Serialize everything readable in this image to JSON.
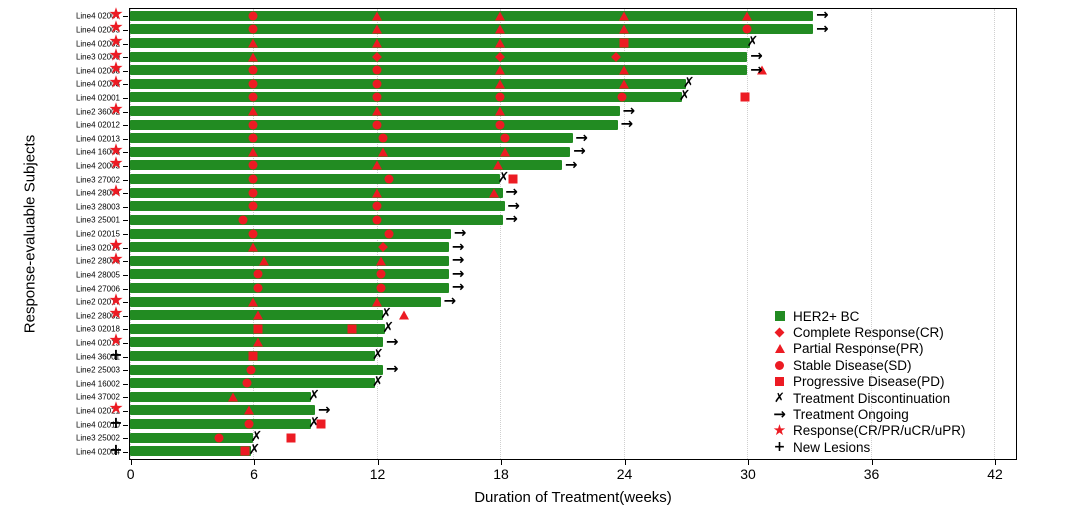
{
  "chart_data": {
    "type": "bar",
    "subtype": "swimmer-plot",
    "title": "",
    "xlabel": "Duration of Treatment(weeks)",
    "ylabel": "Response-evaluable Subjects",
    "x_ticks": [
      0,
      6,
      12,
      18,
      24,
      30,
      36,
      42
    ],
    "xlim": [
      0,
      43
    ],
    "grid": "vertical dotted lines at each x tick",
    "legend_position": "inside bottom-right",
    "colors": {
      "bar_green": "#228B22",
      "marker_red": "#EC1B23",
      "symbol_black": "#000000"
    },
    "glyphs": {
      "x": "✗",
      "arrow": "→",
      "star": "★",
      "plus": "+"
    },
    "legend": [
      {
        "symbol": "bar-square",
        "label": "HER2+ BC"
      },
      {
        "symbol": "diamond",
        "label": "Complete Response(CR)"
      },
      {
        "symbol": "triangle",
        "label": "Partial Response(PR)"
      },
      {
        "symbol": "circle",
        "label": "Stable Disease(SD)"
      },
      {
        "symbol": "square",
        "label": "Progressive Disease(PD)"
      },
      {
        "symbol": "x",
        "label": "Treatment Discontinuation"
      },
      {
        "symbol": "arrow",
        "label": "Treatment Ongoing"
      },
      {
        "symbol": "star",
        "label": "Response(CR/PR/uCR/uPR)"
      },
      {
        "symbol": "plus",
        "label": "New Lesions"
      }
    ],
    "subjects": [
      {
        "label": "Line4 02007",
        "prefix": "star",
        "end_weeks": 33.2,
        "end_symbol": "arrow",
        "markers": [
          {
            "week": 6,
            "type": "circle"
          },
          {
            "week": 12,
            "type": "triangle"
          },
          {
            "week": 18,
            "type": "triangle"
          },
          {
            "week": 24,
            "type": "triangle"
          },
          {
            "week": 30,
            "type": "triangle"
          }
        ]
      },
      {
        "label": "Line4 02005",
        "prefix": "star",
        "end_weeks": 33.2,
        "end_symbol": "arrow",
        "markers": [
          {
            "week": 6,
            "type": "circle"
          },
          {
            "week": 12,
            "type": "triangle"
          },
          {
            "week": 18,
            "type": "triangle"
          },
          {
            "week": 24,
            "type": "triangle"
          },
          {
            "week": 30,
            "type": "circle"
          }
        ]
      },
      {
        "label": "Line4 02002",
        "prefix": "star",
        "end_weeks": 30.1,
        "end_symbol": "x",
        "markers": [
          {
            "week": 6,
            "type": "triangle"
          },
          {
            "week": 12,
            "type": "triangle"
          },
          {
            "week": 18,
            "type": "triangle"
          },
          {
            "week": 24,
            "type": "square"
          }
        ]
      },
      {
        "label": "Line3 02009",
        "prefix": "star",
        "end_weeks": 30.0,
        "end_symbol": "arrow",
        "markers": [
          {
            "week": 6,
            "type": "triangle"
          },
          {
            "week": 12,
            "type": "diamond"
          },
          {
            "week": 18,
            "type": "diamond"
          },
          {
            "week": 23.6,
            "type": "diamond"
          }
        ]
      },
      {
        "label": "Line4 02008",
        "prefix": "star",
        "end_weeks": 30.0,
        "end_symbol": "arrow",
        "markers": [
          {
            "week": 6,
            "type": "circle"
          },
          {
            "week": 12,
            "type": "circle"
          },
          {
            "week": 18,
            "type": "triangle"
          },
          {
            "week": 24,
            "type": "triangle"
          },
          {
            "week": 30.7,
            "type": "triangle"
          }
        ]
      },
      {
        "label": "Line4 02003",
        "prefix": "star",
        "end_weeks": 27.0,
        "end_symbol": "x",
        "markers": [
          {
            "week": 6,
            "type": "circle"
          },
          {
            "week": 12,
            "type": "circle"
          },
          {
            "week": 18,
            "type": "triangle"
          },
          {
            "week": 24,
            "type": "triangle"
          }
        ]
      },
      {
        "label": "Line4 02001",
        "prefix": null,
        "end_weeks": 26.8,
        "end_symbol": "x",
        "markers": [
          {
            "week": 6,
            "type": "circle"
          },
          {
            "week": 12,
            "type": "circle"
          },
          {
            "week": 18,
            "type": "circle"
          },
          {
            "week": 23.9,
            "type": "circle"
          },
          {
            "week": 29.9,
            "type": "square"
          }
        ]
      },
      {
        "label": "Line2 36002",
        "prefix": "star",
        "end_weeks": 23.8,
        "end_symbol": "arrow",
        "markers": [
          {
            "week": 6,
            "type": "triangle"
          },
          {
            "week": 12,
            "type": "triangle"
          },
          {
            "week": 18,
            "type": "triangle"
          }
        ]
      },
      {
        "label": "Line4 02012",
        "prefix": null,
        "end_weeks": 23.7,
        "end_symbol": "arrow",
        "markers": [
          {
            "week": 6,
            "type": "circle"
          },
          {
            "week": 12,
            "type": "circle"
          },
          {
            "week": 18,
            "type": "circle"
          }
        ]
      },
      {
        "label": "Line4 02013",
        "prefix": null,
        "end_weeks": 21.5,
        "end_symbol": "arrow",
        "markers": [
          {
            "week": 6,
            "type": "circle"
          },
          {
            "week": 12.3,
            "type": "circle"
          },
          {
            "week": 18.2,
            "type": "circle"
          }
        ]
      },
      {
        "label": "Line4 16003",
        "prefix": "star",
        "end_weeks": 21.4,
        "end_symbol": "arrow",
        "markers": [
          {
            "week": 6,
            "type": "triangle"
          },
          {
            "week": 12.3,
            "type": "triangle"
          },
          {
            "week": 18.2,
            "type": "triangle"
          }
        ]
      },
      {
        "label": "Line4 20003",
        "prefix": "star",
        "end_weeks": 21.0,
        "end_symbol": "arrow",
        "markers": [
          {
            "week": 6,
            "type": "circle"
          },
          {
            "week": 12,
            "type": "triangle"
          },
          {
            "week": 17.9,
            "type": "triangle"
          }
        ]
      },
      {
        "label": "Line3 27002",
        "prefix": null,
        "end_weeks": 18.0,
        "end_symbol": "x",
        "markers": [
          {
            "week": 6,
            "type": "circle"
          },
          {
            "week": 12.6,
            "type": "circle"
          },
          {
            "week": 18.6,
            "type": "square"
          }
        ]
      },
      {
        "label": "Line4 28004",
        "prefix": "star",
        "end_weeks": 18.1,
        "end_symbol": "arrow",
        "markers": [
          {
            "week": 6,
            "type": "circle"
          },
          {
            "week": 12,
            "type": "triangle"
          },
          {
            "week": 17.7,
            "type": "triangle"
          }
        ]
      },
      {
        "label": "Line3 28003",
        "prefix": null,
        "end_weeks": 18.2,
        "end_symbol": "arrow",
        "markers": [
          {
            "week": 6,
            "type": "circle"
          },
          {
            "week": 12,
            "type": "circle"
          }
        ]
      },
      {
        "label": "Line3 25001",
        "prefix": null,
        "end_weeks": 18.1,
        "end_symbol": "arrow",
        "markers": [
          {
            "week": 5.5,
            "type": "circle"
          },
          {
            "week": 12,
            "type": "circle"
          }
        ]
      },
      {
        "label": "Line2 02015",
        "prefix": null,
        "end_weeks": 15.6,
        "end_symbol": "arrow",
        "markers": [
          {
            "week": 6,
            "type": "circle"
          },
          {
            "week": 12.6,
            "type": "circle"
          }
        ]
      },
      {
        "label": "Line3 02016",
        "prefix": "star",
        "end_weeks": 15.5,
        "end_symbol": "arrow",
        "markers": [
          {
            "week": 6,
            "type": "triangle"
          },
          {
            "week": 12.3,
            "type": "diamond"
          }
        ]
      },
      {
        "label": "Line2 28006",
        "prefix": "star",
        "end_weeks": 15.5,
        "end_symbol": "arrow",
        "markers": [
          {
            "week": 6.5,
            "type": "triangle"
          },
          {
            "week": 12.2,
            "type": "triangle"
          }
        ]
      },
      {
        "label": "Line4 28005",
        "prefix": null,
        "end_weeks": 15.5,
        "end_symbol": "arrow",
        "markers": [
          {
            "week": 6.2,
            "type": "circle"
          },
          {
            "week": 12.2,
            "type": "circle"
          }
        ]
      },
      {
        "label": "Line4 27006",
        "prefix": null,
        "end_weeks": 15.5,
        "end_symbol": "arrow",
        "markers": [
          {
            "week": 6.2,
            "type": "circle"
          },
          {
            "week": 12.2,
            "type": "circle"
          }
        ]
      },
      {
        "label": "Line2 02017",
        "prefix": "star",
        "end_weeks": 15.1,
        "end_symbol": "arrow",
        "markers": [
          {
            "week": 6,
            "type": "triangle"
          },
          {
            "week": 12,
            "type": "triangle"
          }
        ]
      },
      {
        "label": "Line2 28002",
        "prefix": "star",
        "end_weeks": 12.3,
        "end_symbol": "x",
        "markers": [
          {
            "week": 6.2,
            "type": "triangle"
          },
          {
            "week": 13.3,
            "type": "triangle"
          }
        ]
      },
      {
        "label": "Line3 02018",
        "prefix": null,
        "end_weeks": 12.4,
        "end_symbol": "x",
        "markers": [
          {
            "week": 6.2,
            "type": "square"
          },
          {
            "week": 10.8,
            "type": "square"
          }
        ]
      },
      {
        "label": "Line4 02019",
        "prefix": "star",
        "end_weeks": 12.3,
        "end_symbol": "arrow",
        "markers": [
          {
            "week": 6.2,
            "type": "triangle"
          }
        ]
      },
      {
        "label": "Line4 36001",
        "prefix": "plus",
        "end_weeks": 11.9,
        "end_symbol": "x",
        "markers": [
          {
            "week": 6,
            "type": "square"
          }
        ]
      },
      {
        "label": "Line2 25003",
        "prefix": null,
        "end_weeks": 12.3,
        "end_symbol": "arrow",
        "markers": [
          {
            "week": 5.9,
            "type": "circle"
          }
        ]
      },
      {
        "label": "Line4 16002",
        "prefix": null,
        "end_weeks": 11.9,
        "end_symbol": "x",
        "markers": [
          {
            "week": 5.7,
            "type": "circle"
          }
        ]
      },
      {
        "label": "Line4 37002",
        "prefix": null,
        "end_weeks": 8.8,
        "end_symbol": "x",
        "markers": [
          {
            "week": 5.0,
            "type": "triangle"
          }
        ]
      },
      {
        "label": "Line4 02021",
        "prefix": "star",
        "end_weeks": 9.0,
        "end_symbol": "arrow",
        "markers": [
          {
            "week": 5.8,
            "type": "triangle"
          }
        ]
      },
      {
        "label": "Line4 02010",
        "prefix": "plus",
        "end_weeks": 8.8,
        "end_symbol": "x",
        "markers": [
          {
            "week": 5.8,
            "type": "circle"
          },
          {
            "week": 9.3,
            "type": "square"
          }
        ]
      },
      {
        "label": "Line3 25002",
        "prefix": null,
        "end_weeks": 6.0,
        "end_symbol": "x",
        "markers": [
          {
            "week": 4.3,
            "type": "circle"
          },
          {
            "week": 7.8,
            "type": "square"
          }
        ]
      },
      {
        "label": "Line4 02004",
        "prefix": "plus",
        "end_weeks": 5.9,
        "end_symbol": "x",
        "markers": [
          {
            "week": 5.6,
            "type": "square"
          }
        ]
      }
    ]
  }
}
